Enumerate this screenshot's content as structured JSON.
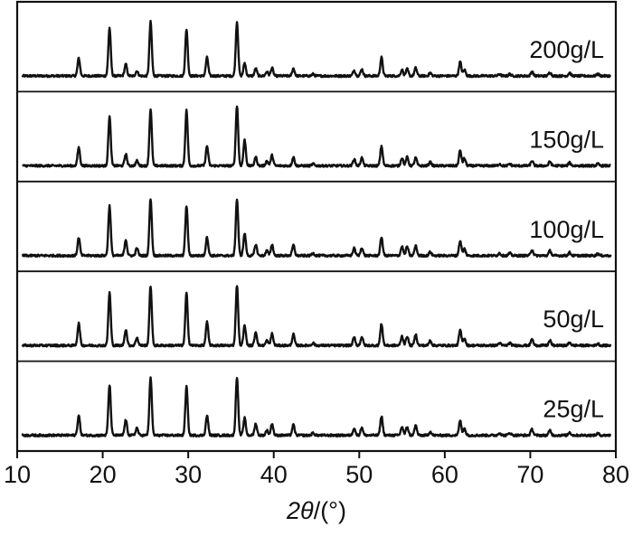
{
  "chart_data": {
    "type": "line",
    "chart_style": "stacked XRD patterns, one panel per concentration, no y-axis scale",
    "xlabel_parts": {
      "italic": "2θ",
      "rest": "/(°)"
    },
    "x_range": [
      10,
      80
    ],
    "x_ticks": [
      10,
      20,
      30,
      40,
      50,
      60,
      70,
      80
    ],
    "x_tick_labels": [
      "10",
      "20",
      "30",
      "40",
      "50",
      "60",
      "70",
      "80"
    ],
    "grid": false,
    "panel_order_top_to_bottom": [
      "200g/L",
      "150g/L",
      "100g/L",
      "50g/L",
      "25g/L"
    ],
    "shared_peaks_2theta": [
      17.2,
      20.8,
      22.7,
      24.0,
      25.6,
      29.8,
      32.2,
      35.7,
      36.6,
      37.9,
      39.2,
      39.8,
      42.3,
      44.6,
      49.4,
      50.3,
      52.6,
      55.0,
      55.6,
      56.6,
      58.3,
      61.8,
      62.3,
      66.4,
      67.6,
      70.2,
      72.3,
      74.6,
      77.9
    ],
    "series": [
      {
        "name": "200g/L",
        "peak_intensity": [
          0.29,
          0.78,
          0.19,
          0.08,
          0.88,
          0.76,
          0.3,
          0.88,
          0.21,
          0.12,
          0.07,
          0.13,
          0.12,
          0.03,
          0.09,
          0.11,
          0.3,
          0.1,
          0.11,
          0.13,
          0.05,
          0.23,
          0.1,
          0.03,
          0.03,
          0.07,
          0.06,
          0.05,
          0.03
        ]
      },
      {
        "name": "150g/L",
        "peak_intensity": [
          0.3,
          0.8,
          0.19,
          0.08,
          0.92,
          0.9,
          0.32,
          0.98,
          0.42,
          0.14,
          0.08,
          0.17,
          0.14,
          0.03,
          0.11,
          0.13,
          0.32,
          0.13,
          0.14,
          0.13,
          0.06,
          0.25,
          0.12,
          0.03,
          0.03,
          0.08,
          0.07,
          0.05,
          0.03
        ]
      },
      {
        "name": "100g/L",
        "peak_intensity": [
          0.29,
          0.81,
          0.26,
          0.12,
          0.93,
          0.81,
          0.3,
          0.92,
          0.36,
          0.18,
          0.08,
          0.18,
          0.17,
          0.04,
          0.12,
          0.13,
          0.3,
          0.15,
          0.15,
          0.16,
          0.06,
          0.24,
          0.11,
          0.04,
          0.04,
          0.1,
          0.08,
          0.05,
          0.03
        ]
      },
      {
        "name": "50g/L",
        "peak_intensity": [
          0.36,
          0.86,
          0.26,
          0.13,
          0.97,
          0.85,
          0.38,
          0.98,
          0.33,
          0.22,
          0.08,
          0.19,
          0.18,
          0.04,
          0.13,
          0.14,
          0.35,
          0.15,
          0.15,
          0.18,
          0.08,
          0.25,
          0.12,
          0.04,
          0.04,
          0.1,
          0.08,
          0.05,
          0.03
        ]
      },
      {
        "name": "25g/L",
        "peak_intensity": [
          0.32,
          0.82,
          0.25,
          0.12,
          0.95,
          0.79,
          0.32,
          0.95,
          0.28,
          0.19,
          0.08,
          0.19,
          0.17,
          0.04,
          0.12,
          0.13,
          0.31,
          0.14,
          0.14,
          0.16,
          0.06,
          0.24,
          0.11,
          0.04,
          0.04,
          0.1,
          0.08,
          0.05,
          0.03
        ]
      }
    ]
  }
}
